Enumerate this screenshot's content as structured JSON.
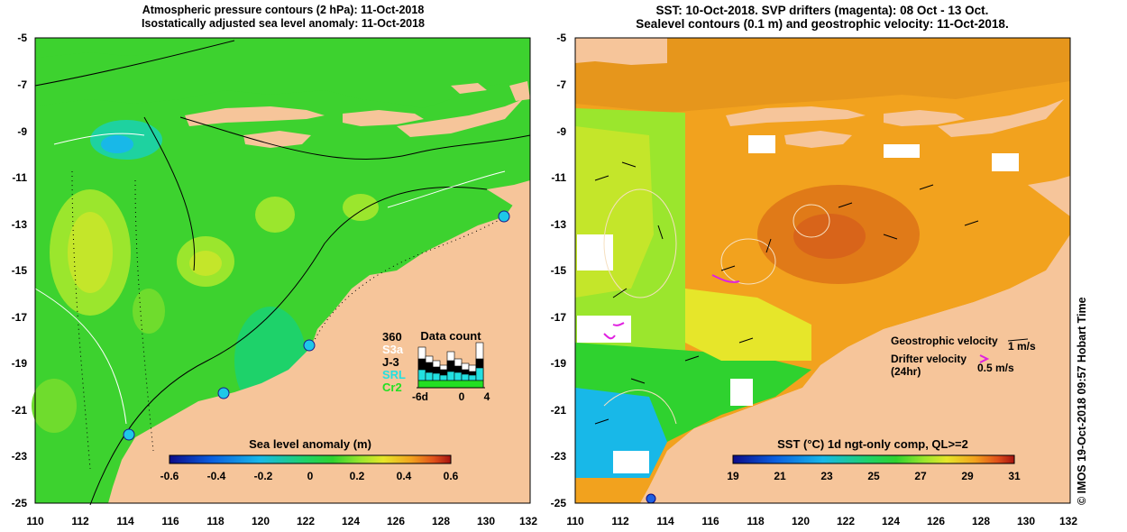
{
  "left_panel": {
    "title_line1": "Atmospheric pressure contours (2 hPa): 11-Oct-2018",
    "title_line2": "Isostatically adjusted sea level anomaly: 11-Oct-2018",
    "x_ticks": [
      "110",
      "112",
      "114",
      "116",
      "118",
      "120",
      "122",
      "124",
      "126",
      "128",
      "130",
      "132"
    ],
    "y_ticks": [
      "-5",
      "-7",
      "-9",
      "-11",
      "-13",
      "-15",
      "-17",
      "-19",
      "-21",
      "-23",
      "-25"
    ],
    "colorbar": {
      "title": "Sea level anomaly (m)",
      "ticks": [
        "-0.6",
        "-0.4",
        "-0.2",
        "0",
        "0.2",
        "0.4",
        "0.6"
      ],
      "stops": [
        "#0b0b8a",
        "#0a5fe0",
        "#18b8e8",
        "#1ed26a",
        "#2fd22f",
        "#9be62d",
        "#e6e62a",
        "#f2a21e",
        "#e0501a",
        "#a5120f"
      ]
    },
    "data_count": {
      "title": "Data count",
      "max_label": "360",
      "legend": [
        {
          "label": "S3a",
          "color": "#ffffff"
        },
        {
          "label": "J-3",
          "color": "#000000"
        },
        {
          "label": "SRL",
          "color": "#22e0e0"
        },
        {
          "label": "Cr2",
          "color": "#22e022"
        }
      ],
      "x_ticks": [
        "-6d",
        "0",
        "4"
      ]
    }
  },
  "right_panel": {
    "title_line1": "SST: 10-Oct-2018. SVP drifters (magenta): 08 Oct - 13 Oct.",
    "title_line2": "Sealevel contours (0.1 m) and geostrophic velocity: 11-Oct-2018.",
    "x_ticks": [
      "110",
      "112",
      "114",
      "116",
      "118",
      "120",
      "122",
      "124",
      "126",
      "128",
      "130",
      "132"
    ],
    "y_ticks": [
      "-5",
      "-7",
      "-9",
      "-11",
      "-13",
      "-15",
      "-17",
      "-19",
      "-21",
      "-23",
      "-25"
    ],
    "legend": {
      "geostrophic_label": "Geostrophic velocity",
      "geostrophic_scale": "1 m/s",
      "drifter_label_line1": "Drifter velocity",
      "drifter_label_line2": "(24hr)",
      "drifter_scale": "0.5 m/s"
    },
    "colorbar": {
      "title": "SST (°C) 1d ngt-only comp, QL>=2",
      "ticks": [
        "19",
        "21",
        "23",
        "25",
        "27",
        "29",
        "31"
      ],
      "stops": [
        "#0b0b8a",
        "#0a5fe0",
        "#18b8e8",
        "#1ed26a",
        "#2fd22f",
        "#9be62d",
        "#e6e62a",
        "#f2a21e",
        "#e0501a",
        "#a5120f"
      ]
    },
    "side_label": "© IMOS 19-Oct-2018 09:57 Hobart Time"
  }
}
